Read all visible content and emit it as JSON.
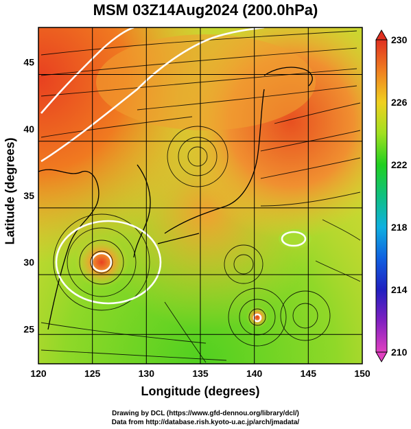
{
  "title": "MSM 03Z14Aug2024 (200.0hPa)",
  "chart_data": {
    "type": "heatmap",
    "xlabel": "Longitude (degrees)",
    "ylabel": "Latitude  (degrees)",
    "xlim": [
      120,
      150
    ],
    "ylim": [
      22.4,
      47.6
    ],
    "xticks": [
      "120",
      "125",
      "130",
      "135",
      "140",
      "145",
      "150"
    ],
    "yticks": [
      "25",
      "30",
      "35",
      "40",
      "45"
    ],
    "colorbar": {
      "ticks": [
        "210",
        "214",
        "218",
        "222",
        "226",
        "230"
      ],
      "range": [
        210,
        230
      ]
    }
  },
  "credits": {
    "line1": "Drawing by DCL (https://www.gfd-dennou.org/library/dcl/)",
    "line2": "Data from http://database.rish.kyoto-u.ac.jp/arch/jmadata/"
  }
}
